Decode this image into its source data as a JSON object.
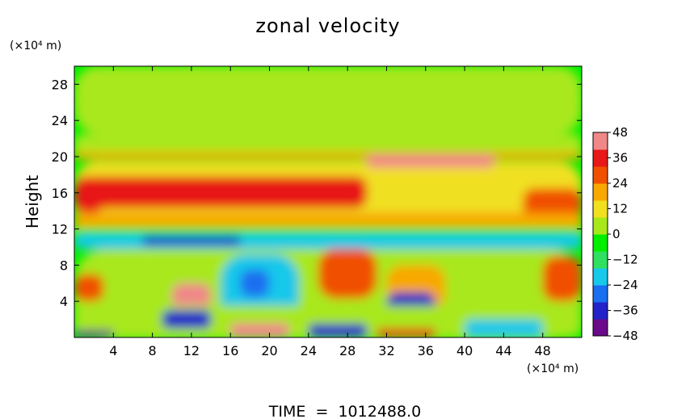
{
  "chart_data": {
    "type": "heatmap",
    "title": "zonal velocity",
    "ylabel": "Height",
    "xunit": "(×10⁴ m)",
    "yunit": "(×10⁴ m)",
    "xlim": [
      0,
      52
    ],
    "ylim": [
      0,
      30
    ],
    "xticks": [
      4,
      8,
      12,
      16,
      20,
      24,
      28,
      32,
      36,
      40,
      44,
      48
    ],
    "yticks": [
      4,
      8,
      12,
      16,
      20,
      24,
      28
    ],
    "colorbar": {
      "min": -48,
      "max": 48,
      "ticks": [
        48,
        36,
        24,
        12,
        0,
        -12,
        -24,
        -36,
        -48
      ],
      "colors": [
        "#6a0a8a",
        "#2222c8",
        "#1a6ef0",
        "#18c8ea",
        "#2fe060",
        "#00ee00",
        "#a8e81a",
        "#f0e020",
        "#f8a800",
        "#f05000",
        "#e81818",
        "#f08888"
      ]
    },
    "footer": "TIME  =  1012488.0",
    "features": [
      {
        "x": 0,
        "y": 30,
        "w": 52,
        "h": 7.5,
        "value": 3
      },
      {
        "x": 0,
        "y": 22.5,
        "w": 52,
        "h": 2.5,
        "value": 7
      },
      {
        "x": 0,
        "y": 20.5,
        "w": 52,
        "h": 0.8,
        "value": 18
      },
      {
        "x": 0,
        "y": 19.5,
        "w": 52,
        "h": 7.5,
        "value": 14
      },
      {
        "x": 0,
        "y": 17.8,
        "w": 30,
        "h": 3.5,
        "value": 34
      },
      {
        "x": 30,
        "y": 20.2,
        "w": 13,
        "h": 1.4,
        "value": 42
      },
      {
        "x": 0,
        "y": 16.8,
        "w": 3,
        "h": 3,
        "value": 32
      },
      {
        "x": 46,
        "y": 16.5,
        "w": 6,
        "h": 3.5,
        "value": 30
      },
      {
        "x": 0,
        "y": 13.8,
        "w": 52,
        "h": 2.5,
        "value": 22
      },
      {
        "x": 0,
        "y": 12.2,
        "w": 52,
        "h": 2.2,
        "value": -2
      },
      {
        "x": 0,
        "y": 11.4,
        "w": 52,
        "h": 1.6,
        "value": -22
      },
      {
        "x": 7,
        "y": 11.2,
        "w": 10,
        "h": 1.0,
        "value": -34
      },
      {
        "x": 0,
        "y": 9.8,
        "w": 52,
        "h": 10,
        "value": 2
      },
      {
        "x": 15,
        "y": 9.2,
        "w": 8,
        "h": 8,
        "value": -20
      },
      {
        "x": 17,
        "y": 7.5,
        "w": 3,
        "h": 3,
        "value": -28
      },
      {
        "x": 25,
        "y": 9.8,
        "w": 6,
        "h": 5.5,
        "value": 30
      },
      {
        "x": 0,
        "y": 7,
        "w": 3,
        "h": 3,
        "value": 30
      },
      {
        "x": 32,
        "y": 8,
        "w": 6,
        "h": 5,
        "value": 16
      },
      {
        "x": 48,
        "y": 9,
        "w": 4,
        "h": 5,
        "value": 24
      },
      {
        "x": 10,
        "y": 6,
        "w": 4,
        "h": 3,
        "value": 40
      },
      {
        "x": 32,
        "y": 5,
        "w": 5,
        "h": 3.5,
        "value": -36
      },
      {
        "x": 0,
        "y": 3.5,
        "w": 52,
        "h": 3.5,
        "value": 6
      },
      {
        "x": 9,
        "y": 3,
        "w": 5,
        "h": 2,
        "value": -40
      },
      {
        "x": 16,
        "y": 1.6,
        "w": 6,
        "h": 1.6,
        "value": 48
      },
      {
        "x": 24,
        "y": 1.5,
        "w": 6,
        "h": 1.5,
        "value": -40
      },
      {
        "x": 31,
        "y": 1.0,
        "w": 6,
        "h": 1.0,
        "value": 38
      },
      {
        "x": 0,
        "y": 0.8,
        "w": 4,
        "h": 0.8,
        "value": -48
      },
      {
        "x": 40,
        "y": 2,
        "w": 8,
        "h": 2,
        "value": -18
      }
    ]
  }
}
